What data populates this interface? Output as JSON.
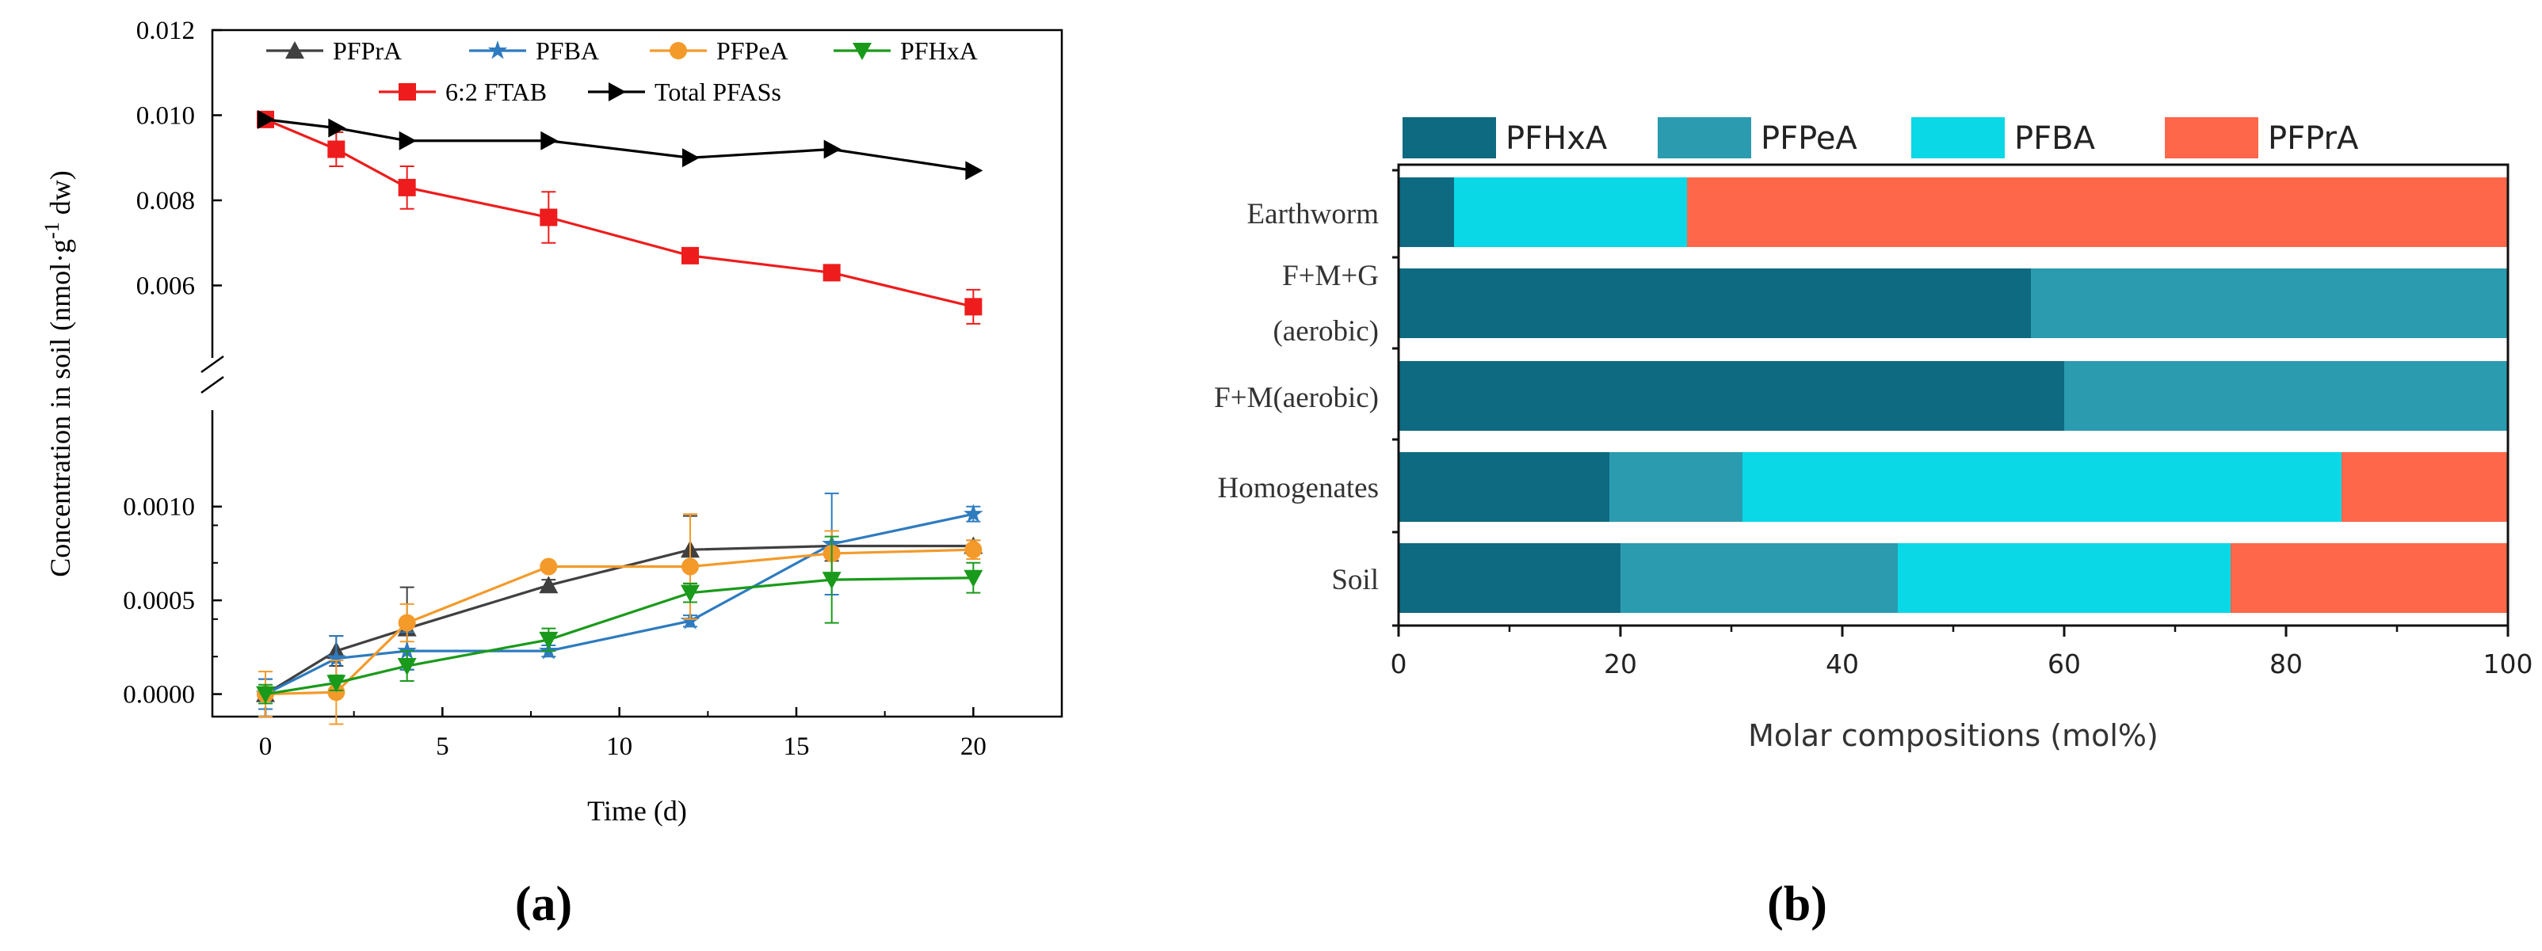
{
  "chart_data": [
    {
      "id": "a",
      "type": "line",
      "panel_label": "(a)",
      "xlabel": "Time (d)",
      "ylabel": "Concentration in soil (nmol·g⁻¹ dw)",
      "xlim": [
        -1.5,
        22.5
      ],
      "xticks": [
        "0",
        "5",
        "10",
        "15",
        "20"
      ],
      "broken_axis": true,
      "upper_ylim": [
        0.0048,
        0.012
      ],
      "upper_yticks": [
        "0.012",
        "0.010",
        "0.008",
        "0.006"
      ],
      "lower_ylim": [
        -0.00012,
        0.0014
      ],
      "lower_yticks": [
        "0.0010",
        "0.0005",
        "0.0000"
      ],
      "x": [
        0,
        2,
        4,
        8,
        12,
        16,
        20
      ],
      "series": [
        {
          "name": "PFPrA",
          "color": "#404040",
          "marker": "triangle-up",
          "axis": "lower",
          "values": [
            0.0,
            0.00023,
            0.00035,
            0.00058,
            0.00077,
            0.00079,
            0.00079
          ],
          "errors": [
            8e-05,
            8e-05,
            0.00022,
            3e-05,
            0.00018,
            8e-05,
            3e-05
          ]
        },
        {
          "name": "PFBA",
          "color": "#2e7bbf",
          "marker": "star",
          "axis": "lower",
          "values": [
            0.0,
            0.00019,
            0.00023,
            0.00023,
            0.00039,
            0.0008,
            0.00096
          ],
          "errors": [
            8e-05,
            0.00012,
            0.0001,
            3e-05,
            3e-05,
            0.00027,
            4e-05
          ]
        },
        {
          "name": "PFPeA",
          "color": "#f39a2a",
          "marker": "circle",
          "axis": "lower",
          "values": [
            0.0,
            1e-05,
            0.00038,
            0.00068,
            0.00068,
            0.00075,
            0.00077
          ],
          "errors": [
            0.00012,
            0.00017,
            0.0001,
            2e-05,
            0.00028,
            0.00012,
            5e-05
          ]
        },
        {
          "name": "PFHxA",
          "color": "#1a9a1a",
          "marker": "triangle-down",
          "axis": "lower",
          "values": [
            0.0,
            6e-05,
            0.00015,
            0.00029,
            0.00054,
            0.00061,
            0.00062
          ],
          "errors": [
            5e-05,
            4e-05,
            8e-05,
            6e-05,
            5e-05,
            0.00023,
            8e-05
          ]
        },
        {
          "name": "6:2 FTAB",
          "color": "#ee1c1c",
          "marker": "square",
          "axis": "upper",
          "values": [
            0.0099,
            0.0092,
            0.0083,
            0.0076,
            0.0067,
            0.0063,
            0.0055
          ],
          "errors": [
            0.0001,
            0.0004,
            0.0005,
            0.0006,
            0.0001,
            0.0001,
            0.0004
          ]
        },
        {
          "name": "Total PFASs",
          "color": "#000000",
          "marker": "triangle-right",
          "axis": "upper",
          "values": [
            0.0099,
            0.0097,
            0.0094,
            0.0094,
            0.009,
            0.0092,
            0.0087
          ],
          "errors": [
            0,
            0,
            0,
            0,
            0,
            0,
            0
          ]
        }
      ]
    },
    {
      "id": "b",
      "type": "bar",
      "orientation": "horizontal",
      "stacked": true,
      "panel_label": "(b)",
      "xlabel": "Molar compositions (mol%)",
      "xlim": [
        0,
        100
      ],
      "xticks": [
        "0",
        "20",
        "40",
        "60",
        "80",
        "100"
      ],
      "categories": [
        "Earthworm",
        "F+M+G (aerobic)",
        "F+M(aerobic)",
        "Homogenates",
        "Soil"
      ],
      "category_lines": [
        [
          "Earthworm"
        ],
        [
          "F+M+G",
          "(aerobic)"
        ],
        [
          "F+M(aerobic)"
        ],
        [
          "Homogenates"
        ],
        [
          "Soil"
        ]
      ],
      "series": [
        {
          "name": "PFHxA",
          "color": "#0e6a80",
          "values": [
            5,
            57,
            60,
            19,
            20
          ]
        },
        {
          "name": "PFPeA",
          "color": "#2b9bb0",
          "values": [
            0,
            43,
            40,
            12,
            25
          ]
        },
        {
          "name": "PFBA",
          "color": "#0ad8e6",
          "values": [
            21,
            0,
            0,
            54,
            30
          ]
        },
        {
          "name": "PFPrA",
          "color": "#fe674a",
          "values": [
            74,
            0,
            0,
            15,
            25
          ]
        }
      ]
    }
  ]
}
